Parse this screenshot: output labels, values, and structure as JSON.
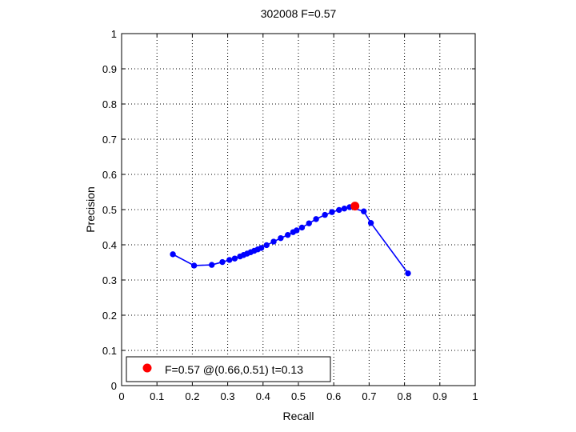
{
  "chart_data": {
    "type": "line",
    "title": "302008 F=0.57",
    "xlabel": "Recall",
    "ylabel": "Precision",
    "xlim": [
      0,
      1
    ],
    "ylim": [
      0,
      1
    ],
    "xticks": [
      "0",
      "0.1",
      "0.2",
      "0.3",
      "0.4",
      "0.5",
      "0.6",
      "0.7",
      "0.8",
      "0.9",
      "1"
    ],
    "yticks": [
      "0",
      "0.1",
      "0.2",
      "0.3",
      "0.4",
      "0.5",
      "0.6",
      "0.7",
      "0.8",
      "0.9",
      "1"
    ],
    "grid": true,
    "series": [
      {
        "color": "#0000ff",
        "marker": "circle",
        "points": [
          [
            0.145,
            0.373
          ],
          [
            0.205,
            0.341
          ],
          [
            0.255,
            0.343
          ],
          [
            0.285,
            0.351
          ],
          [
            0.305,
            0.357
          ],
          [
            0.32,
            0.361
          ],
          [
            0.335,
            0.367
          ],
          [
            0.345,
            0.371
          ],
          [
            0.355,
            0.375
          ],
          [
            0.365,
            0.379
          ],
          [
            0.375,
            0.383
          ],
          [
            0.385,
            0.387
          ],
          [
            0.395,
            0.391
          ],
          [
            0.41,
            0.399
          ],
          [
            0.43,
            0.409
          ],
          [
            0.45,
            0.419
          ],
          [
            0.47,
            0.428
          ],
          [
            0.485,
            0.436
          ],
          [
            0.495,
            0.441
          ],
          [
            0.51,
            0.449
          ],
          [
            0.53,
            0.461
          ],
          [
            0.55,
            0.473
          ],
          [
            0.575,
            0.485
          ],
          [
            0.595,
            0.493
          ],
          [
            0.615,
            0.499
          ],
          [
            0.63,
            0.503
          ],
          [
            0.645,
            0.507
          ],
          [
            0.685,
            0.495
          ],
          [
            0.705,
            0.462
          ],
          [
            0.81,
            0.319
          ]
        ]
      }
    ],
    "best_point": {
      "recall": 0.66,
      "precision": 0.51,
      "color": "#ff0000"
    },
    "legend": {
      "placement": "bottom-left",
      "entries": [
        {
          "label": "F=0.57 @(0.66,0.51) t=0.13",
          "color": "#ff0000"
        }
      ]
    }
  }
}
